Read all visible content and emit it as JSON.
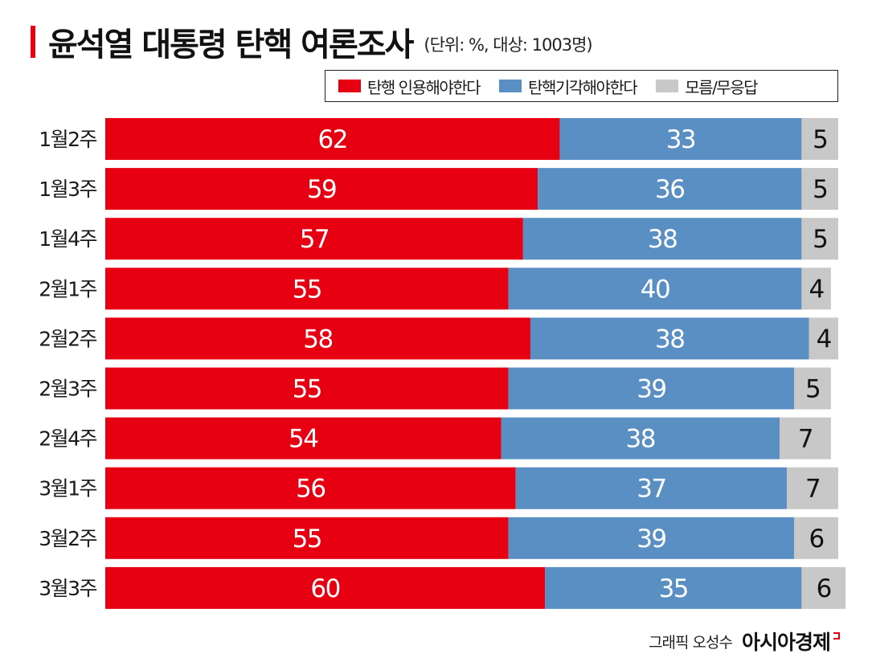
{
  "header": {
    "title": "윤석열 대통령 탄핵 여론조사",
    "subtitle": "(단위: %, 대상: 1003명)"
  },
  "colors": {
    "accent": "#e60012",
    "support": "#e60012",
    "oppose": "#5a8fc4",
    "unknown": "#c8c8c8"
  },
  "legend": [
    {
      "label": "탄행 인용해야한다",
      "color": "#e60012"
    },
    {
      "label": "탄핵기각해야한다",
      "color": "#5a8fc4"
    },
    {
      "label": "모름/무응답",
      "color": "#c8c8c8"
    }
  ],
  "chart_data": {
    "type": "bar",
    "orientation": "horizontal",
    "stacked": true,
    "title": "윤석열 대통령 탄핵 여론조사",
    "subtitle": "(단위: %, 대상: 1003명)",
    "categories": [
      "1월2주",
      "1월3주",
      "1월4주",
      "2월1주",
      "2월2주",
      "2월3주",
      "2월4주",
      "3월1주",
      "3월2주",
      "3월3주"
    ],
    "series": [
      {
        "name": "탄행 인용해야한다",
        "color": "#e60012",
        "values": [
          62,
          59,
          57,
          55,
          58,
          55,
          54,
          56,
          55,
          60
        ]
      },
      {
        "name": "탄핵기각해야한다",
        "color": "#5a8fc4",
        "values": [
          33,
          36,
          38,
          40,
          38,
          39,
          38,
          37,
          39,
          35
        ]
      },
      {
        "name": "모름/무응답",
        "color": "#c8c8c8",
        "values": [
          5,
          5,
          5,
          4,
          4,
          5,
          7,
          7,
          6,
          6
        ]
      }
    ],
    "xlabel": "",
    "ylabel": "",
    "grid": false,
    "legend_position": "top-right"
  },
  "footer": {
    "credit": "그래픽 오성수",
    "brand": "아시아경제"
  }
}
